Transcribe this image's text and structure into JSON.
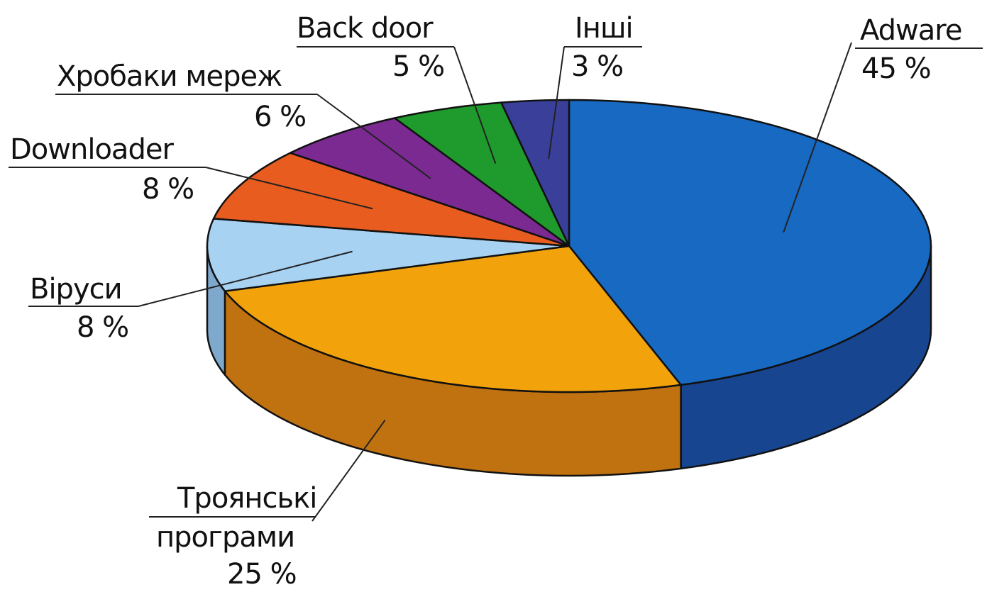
{
  "chart_data": {
    "type": "pie",
    "title": "",
    "unit": "%",
    "slices": [
      {
        "label": "Adware",
        "value": 45,
        "value_text": "45 %",
        "color": "#1769c2",
        "side_color": "#17458f"
      },
      {
        "label": "Троянські програми",
        "label_lines": [
          "Троянські",
          "програми"
        ],
        "value": 25,
        "value_text": "25 %",
        "color": "#f2a30c",
        "side_color": "#c07210"
      },
      {
        "label": "Віруси",
        "value": 8,
        "value_text": "8 %",
        "color": "#a8d2f2",
        "side_color": "#7fa9cc"
      },
      {
        "label": "Downloader",
        "value": 8,
        "value_text": "8 %",
        "color": "#e85c1f",
        "side_color": "#b04414"
      },
      {
        "label": "Хробаки мереж",
        "value": 6,
        "value_text": "6 %",
        "color": "#7b2a92",
        "side_color": "#561d68"
      },
      {
        "label": "Back door",
        "value": 5,
        "value_text": "5 %",
        "color": "#1f9a2c",
        "side_color": "#167020"
      },
      {
        "label": "Інші",
        "value": 3,
        "value_text": "3 %",
        "color": "#3a3f9a",
        "side_color": "#282c70"
      }
    ]
  }
}
